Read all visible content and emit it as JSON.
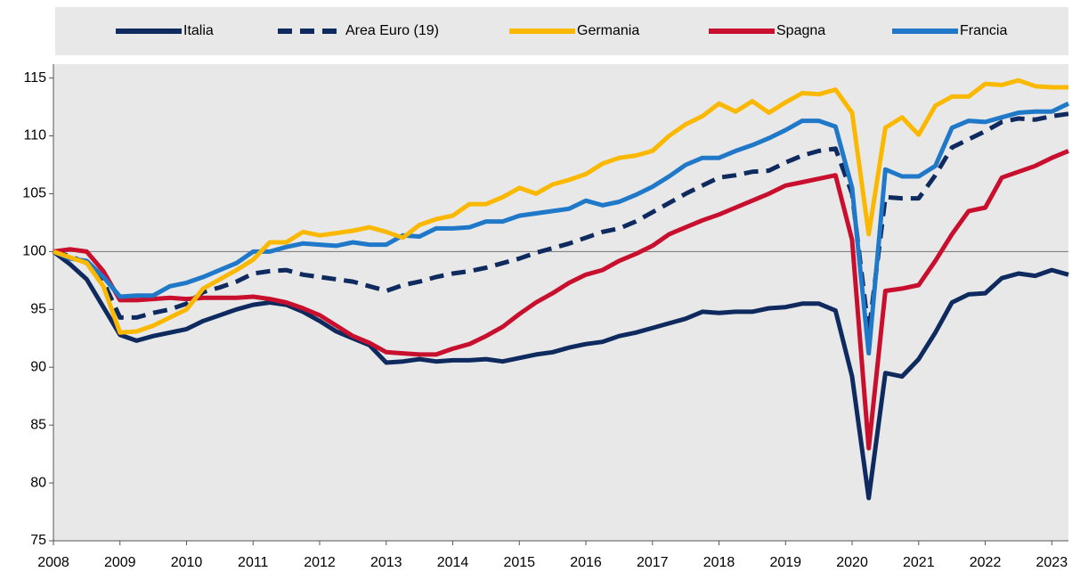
{
  "chart_data": {
    "type": "line",
    "x": [
      2008,
      2008.25,
      2008.5,
      2008.75,
      2009,
      2009.25,
      2009.5,
      2009.75,
      2010,
      2010.25,
      2010.5,
      2010.75,
      2011,
      2011.25,
      2011.5,
      2011.75,
      2012,
      2012.25,
      2012.5,
      2012.75,
      2013,
      2013.25,
      2013.5,
      2013.75,
      2014,
      2014.25,
      2014.5,
      2014.75,
      2015,
      2015.25,
      2015.5,
      2015.75,
      2016,
      2016.25,
      2016.5,
      2016.75,
      2017,
      2017.25,
      2017.5,
      2017.75,
      2018,
      2018.25,
      2018.5,
      2018.75,
      2019,
      2019.25,
      2019.5,
      2019.75,
      2020,
      2020.25,
      2020.5,
      2020.75,
      2021,
      2021.25,
      2021.5,
      2021.75,
      2022,
      2022.25,
      2022.5,
      2022.75,
      2023,
      2023.25
    ],
    "series": [
      {
        "name": "Italia",
        "color": "#0e2a5e",
        "dash": "solid",
        "values": [
          100,
          98.9,
          97.6,
          95.2,
          92.8,
          92.3,
          92.7,
          93.0,
          93.3,
          94.0,
          94.5,
          95.0,
          95.4,
          95.6,
          95.4,
          94.8,
          94.0,
          93.1,
          92.5,
          91.9,
          90.4,
          90.5,
          90.7,
          90.5,
          90.6,
          90.6,
          90.7,
          90.5,
          90.8,
          91.1,
          91.3,
          91.7,
          92.0,
          92.2,
          92.7,
          93.0,
          93.4,
          93.8,
          94.2,
          94.8,
          94.7,
          94.8,
          94.8,
          95.1,
          95.2,
          95.5,
          95.5,
          94.9,
          89.2,
          78.7,
          89.5,
          89.2,
          90.7,
          93.0,
          95.6,
          96.3,
          96.4,
          97.7,
          98.1,
          97.9,
          98.4,
          98.0
        ]
      },
      {
        "name": "Area Euro (19)",
        "color": "#0e2a5e",
        "dash": "dashed",
        "values": [
          100,
          99.6,
          99.0,
          97.4,
          94.3,
          94.3,
          94.7,
          95.0,
          95.5,
          96.5,
          96.9,
          97.4,
          98.1,
          98.3,
          98.4,
          98.0,
          97.8,
          97.6,
          97.4,
          97.0,
          96.6,
          97.1,
          97.4,
          97.8,
          98.1,
          98.3,
          98.6,
          99.0,
          99.4,
          99.9,
          100.3,
          100.7,
          101.2,
          101.7,
          102.0,
          102.6,
          103.4,
          104.2,
          105.0,
          105.7,
          106.4,
          106.6,
          106.9,
          107.0,
          107.7,
          108.3,
          108.7,
          108.9,
          105.0,
          93.0,
          104.7,
          104.6,
          104.6,
          106.6,
          109.0,
          109.7,
          110.4,
          111.2,
          111.5,
          111.4,
          111.7,
          111.9
        ]
      },
      {
        "name": "Germania",
        "color": "#fbb800",
        "dash": "solid",
        "values": [
          100,
          99.5,
          99.0,
          97.0,
          93.0,
          93.1,
          93.6,
          94.3,
          95.0,
          96.8,
          97.6,
          98.4,
          99.3,
          100.8,
          100.8,
          101.7,
          101.4,
          101.6,
          101.8,
          102.1,
          101.7,
          101.2,
          102.3,
          102.8,
          103.1,
          104.1,
          104.1,
          104.7,
          105.5,
          105.0,
          105.8,
          106.2,
          106.7,
          107.6,
          108.1,
          108.3,
          108.7,
          110.0,
          111.0,
          111.7,
          112.8,
          112.1,
          113.0,
          112.0,
          112.9,
          113.7,
          113.6,
          114.0,
          112.0,
          101.5,
          110.7,
          111.6,
          110.1,
          112.6,
          113.4,
          113.4,
          114.5,
          114.4,
          114.8,
          114.3,
          114.2,
          114.2
        ]
      },
      {
        "name": "Spagna",
        "color": "#c8102e",
        "dash": "solid",
        "values": [
          100,
          100.2,
          100.0,
          98.3,
          95.8,
          95.8,
          95.9,
          96.0,
          95.9,
          96.0,
          96.0,
          96.0,
          96.1,
          95.9,
          95.6,
          95.1,
          94.5,
          93.6,
          92.7,
          92.1,
          91.3,
          91.2,
          91.1,
          91.1,
          91.6,
          92.0,
          92.7,
          93.5,
          94.6,
          95.6,
          96.4,
          97.3,
          98.0,
          98.4,
          99.2,
          99.8,
          100.5,
          101.5,
          102.1,
          102.7,
          103.2,
          103.8,
          104.4,
          105.0,
          105.7,
          106.0,
          106.3,
          106.6,
          101.0,
          83.0,
          96.6,
          96.8,
          97.1,
          99.2,
          101.5,
          103.5,
          103.8,
          106.4,
          106.9,
          107.4,
          108.1,
          108.7
        ]
      },
      {
        "name": "Francia",
        "color": "#1f78c8",
        "dash": "solid",
        "values": [
          100,
          99.4,
          99.2,
          97.8,
          96.1,
          96.2,
          96.2,
          97.0,
          97.3,
          97.8,
          98.4,
          99.0,
          100.0,
          100.0,
          100.4,
          100.7,
          100.6,
          100.5,
          100.8,
          100.6,
          100.6,
          101.4,
          101.3,
          102.0,
          102.0,
          102.1,
          102.6,
          102.6,
          103.1,
          103.3,
          103.5,
          103.7,
          104.4,
          104.0,
          104.3,
          104.9,
          105.6,
          106.5,
          107.5,
          108.1,
          108.1,
          108.7,
          109.2,
          109.8,
          110.5,
          111.3,
          111.3,
          110.8,
          105.5,
          91.2,
          107.1,
          106.5,
          106.5,
          107.4,
          110.7,
          111.3,
          111.2,
          111.6,
          112.0,
          112.1,
          112.1,
          112.8
        ]
      }
    ],
    "xlim": [
      2008,
      2023.25
    ],
    "xticks": [
      2008,
      2009,
      2010,
      2011,
      2012,
      2013,
      2014,
      2015,
      2016,
      2017,
      2018,
      2019,
      2020,
      2021,
      2022,
      2023
    ],
    "ylim": [
      75,
      116.2
    ],
    "yticks": [
      75,
      80,
      85,
      90,
      95,
      100,
      105,
      110,
      115
    ],
    "reference_line": 100,
    "background": "#e8e8e8",
    "legend": "top"
  }
}
